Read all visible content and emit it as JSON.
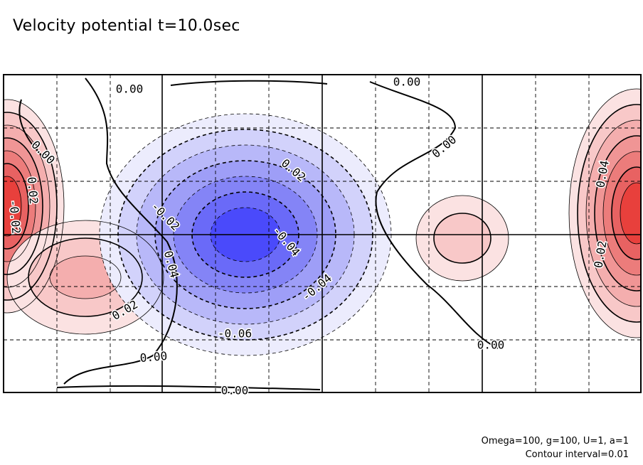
{
  "title": "Velocity potential t=10.0sec",
  "notes": {
    "params": "Omega=100, g=100, U=1, a=1",
    "interval": "Contour interval=0.01"
  },
  "colors": {
    "positive_max": "#e8403c",
    "positive_light": "#fbe2e2",
    "negative_max": "#3d3dff",
    "negative_light": "#ececfd",
    "frame": "#000000"
  },
  "chart_data": {
    "type": "heatmap",
    "title": "Velocity potential t=10.0sec",
    "variable": "velocity potential",
    "contour_interval": 0.01,
    "grid": true,
    "positive_contours": "solid",
    "negative_contours": "dashed",
    "zero_contour": "thick solid",
    "contour_labels": [
      "0.00",
      "0.00",
      "0.00",
      "0.00",
      "0.00",
      "0.00",
      "0.00",
      "0.02",
      "0.02",
      "0.02",
      "0.02",
      "0.04",
      "0.04",
      "-0.02",
      "-0.02",
      "-0.04",
      "-0.04",
      "-0.06"
    ],
    "extrema": [
      {
        "sign": "negative",
        "approx_value": -0.07,
        "region": "centre-left"
      },
      {
        "sign": "positive",
        "approx_value": 0.07,
        "region": "left edge"
      },
      {
        "sign": "positive",
        "approx_value": 0.07,
        "region": "right edge"
      },
      {
        "sign": "positive",
        "approx_value": 0.02,
        "region": "right of centre"
      }
    ]
  }
}
